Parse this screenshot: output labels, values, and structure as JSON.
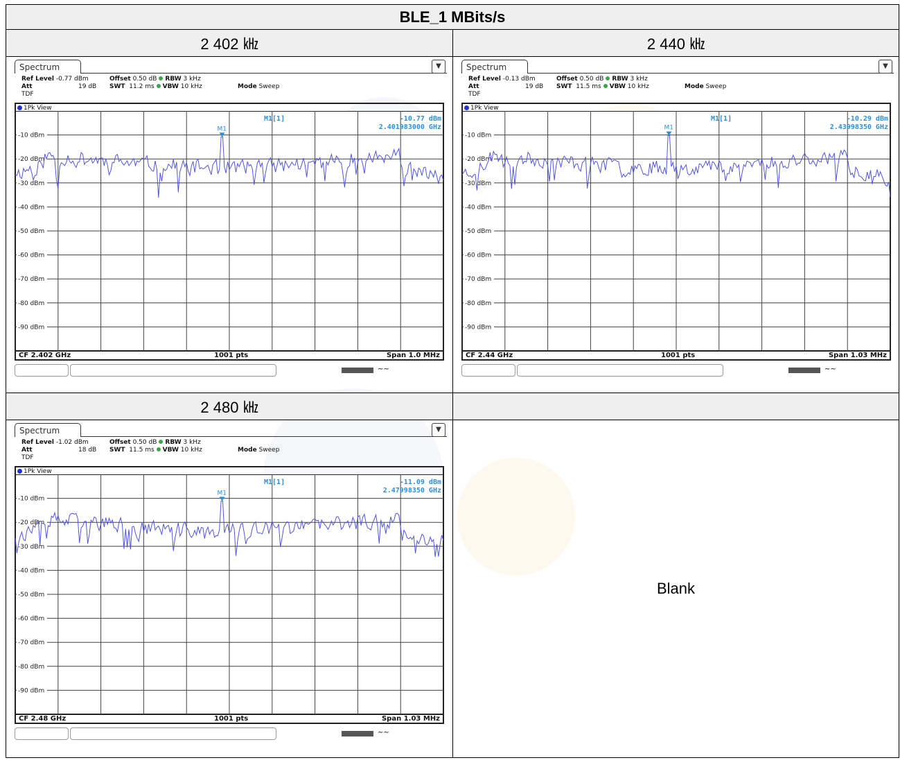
{
  "title": "BLE_1 MBits/s",
  "blank_label": "Blank",
  "colors": {
    "trace": "#5055dd",
    "marker": "#2b8fd6",
    "grid": "#404040",
    "header_bg": "#efefef"
  },
  "plots": [
    {
      "freq_label": "2 402 ㎑",
      "tab": "Spectrum",
      "menu_icon": "menu-icon",
      "ref_level_label": "Ref Level",
      "ref_level": "-0.77 dBm",
      "offset_label": "Offset",
      "offset": "0.50 dB",
      "rbw_label": "RBW",
      "rbw": "3 kHz",
      "att_label": "Att",
      "att": "19 dB",
      "swt_label": "SWT",
      "swt": "11.2 ms",
      "vbw_label": "VBW",
      "vbw": "10 kHz",
      "mode_label": "Mode",
      "mode": "Sweep",
      "tdf": "TDF",
      "view": "1Pk View",
      "marker_name": "M1[1]",
      "marker_value": "-10.77 dBm",
      "marker_freq": "2.401983000 GHz",
      "marker_tag": "M1",
      "cf": "CF 2.402 GHz",
      "pts": "1001 pts",
      "span": "Span 1.0 MHz",
      "y_ticks": [
        "-10 dBm",
        "-20 dBm",
        "-30 dBm",
        "-40 dBm",
        "-50 dBm",
        "-60 dBm",
        "-70 dBm",
        "-80 dBm",
        "-90 dBm"
      ],
      "chart_data": {
        "type": "line",
        "xlabel": "",
        "ylabel": "",
        "ylim": [
          -100,
          0
        ],
        "x_center_ghz": 2.402,
        "span_mhz": 1.0,
        "points": 1001,
        "marker_x_fraction": 0.483,
        "marker_y_dbm": -10.77,
        "seed": 11
      }
    },
    {
      "freq_label": "2 440 ㎑",
      "tab": "Spectrum",
      "menu_icon": "menu-icon",
      "ref_level_label": "Ref Level",
      "ref_level": "-0.13 dBm",
      "offset_label": "Offset",
      "offset": "0.50 dB",
      "rbw_label": "RBW",
      "rbw": "3 kHz",
      "att_label": "Att",
      "att": "19 dB",
      "swt_label": "SWT",
      "swt": "11.5 ms",
      "vbw_label": "VBW",
      "vbw": "10 kHz",
      "mode_label": "Mode",
      "mode": "Sweep",
      "tdf": "TDF",
      "view": "1Pk View",
      "marker_name": "M1[1]",
      "marker_value": "-10.29 dBm",
      "marker_freq": "2.43998350 GHz",
      "marker_tag": "M1",
      "cf": "CF 2.44 GHz",
      "pts": "1001 pts",
      "span": "Span 1.03 MHz",
      "y_ticks": [
        "-10 dBm",
        "-20 dBm",
        "-30 dBm",
        "-40 dBm",
        "-50 dBm",
        "-60 dBm",
        "-70 dBm",
        "-80 dBm",
        "-90 dBm"
      ],
      "chart_data": {
        "type": "line",
        "xlabel": "",
        "ylabel": "",
        "ylim": [
          -100,
          0
        ],
        "x_center_ghz": 2.44,
        "span_mhz": 1.03,
        "points": 1001,
        "marker_x_fraction": 0.483,
        "marker_y_dbm": -10.29,
        "seed": 23
      }
    },
    {
      "freq_label": "2 480 ㎑",
      "tab": "Spectrum",
      "menu_icon": "menu-icon",
      "ref_level_label": "Ref Level",
      "ref_level": "-1.02 dBm",
      "offset_label": "Offset",
      "offset": "0.50 dB",
      "rbw_label": "RBW",
      "rbw": "3 kHz",
      "att_label": "Att",
      "att": "18 dB",
      "swt_label": "SWT",
      "swt": "11.5 ms",
      "vbw_label": "VBW",
      "vbw": "10 kHz",
      "mode_label": "Mode",
      "mode": "Sweep",
      "tdf": "TDF",
      "view": "1Pk View",
      "marker_name": "M1[1]",
      "marker_value": "-11.09 dBm",
      "marker_freq": "2.47998350 GHz",
      "marker_tag": "M1",
      "cf": "CF 2.48 GHz",
      "pts": "1001 pts",
      "span": "Span 1.03 MHz",
      "y_ticks": [
        "-10 dBm",
        "-20 dBm",
        "-30 dBm",
        "-40 dBm",
        "-50 dBm",
        "-60 dBm",
        "-70 dBm",
        "-80 dBm",
        "-90 dBm"
      ],
      "chart_data": {
        "type": "line",
        "xlabel": "",
        "ylabel": "",
        "ylim": [
          -100,
          0
        ],
        "x_center_ghz": 2.48,
        "span_mhz": 1.03,
        "points": 1001,
        "marker_x_fraction": 0.483,
        "marker_y_dbm": -11.09,
        "seed": 37
      }
    }
  ]
}
